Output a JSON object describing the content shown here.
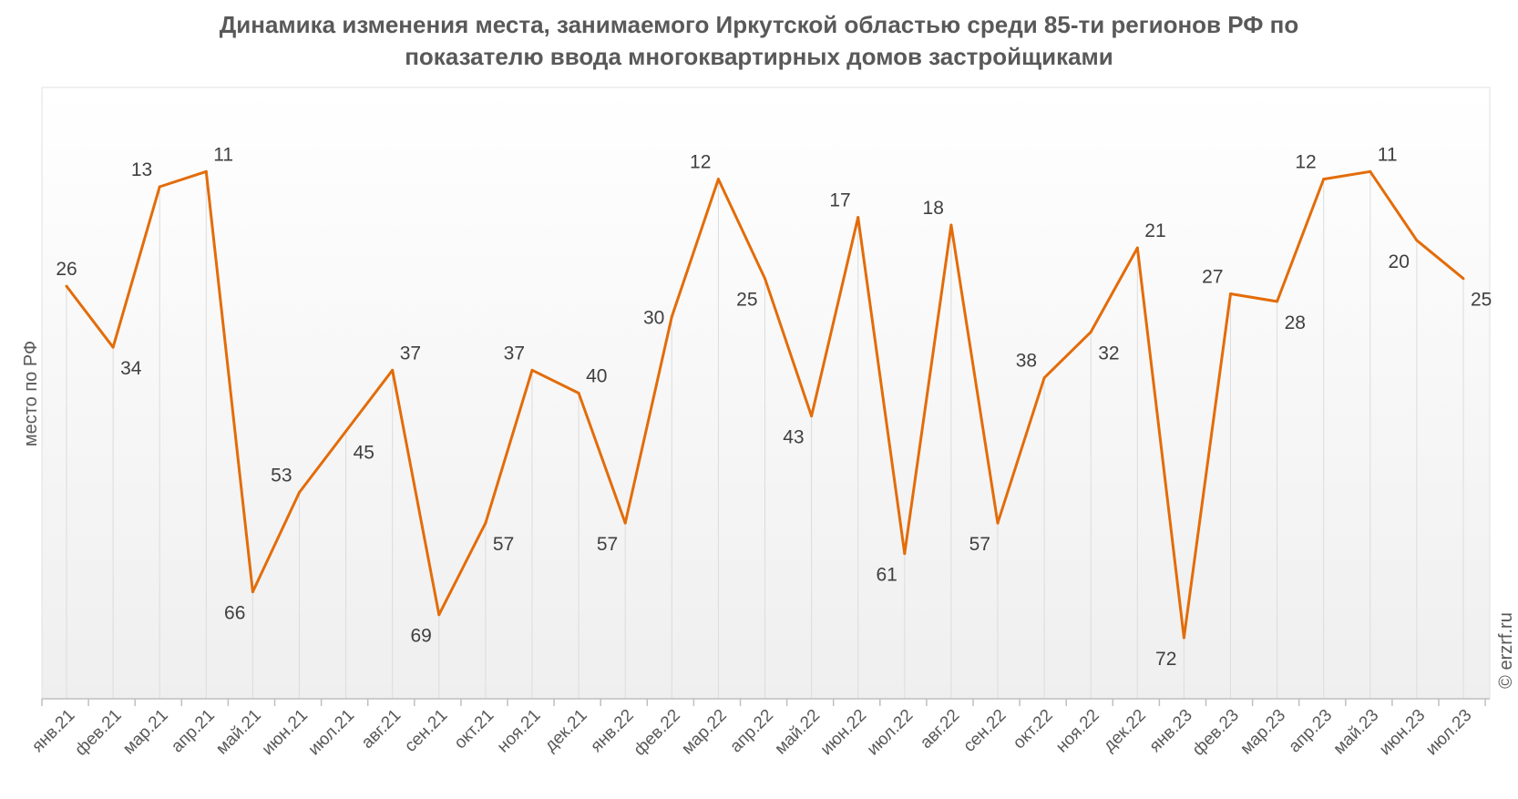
{
  "chart_data": {
    "type": "line",
    "title": [
      "Динамика изменения места, занимаемого Иркутской областью среди 85-ти регионов РФ по",
      "показателю ввода многоквартирных домов застройщиками"
    ],
    "xlabel": "",
    "ylabel": "место по РФ",
    "y_reversed": true,
    "ylim": [
      0,
      80
    ],
    "grid": "vertical",
    "categories": [
      "янв.21",
      "фев.21",
      "мар.21",
      "апр.21",
      "май.21",
      "июн.21",
      "июл.21",
      "авг.21",
      "сен.21",
      "окт.21",
      "ноя.21",
      "дек.21",
      "янв.22",
      "фев.22",
      "мар.22",
      "апр.22",
      "май.22",
      "июн.22",
      "июл.22",
      "авг.22",
      "сен.22",
      "окт.22",
      "ноя.22",
      "дек.22",
      "янв.23",
      "фев.23",
      "мар.23",
      "апр.23",
      "май.23",
      "июн.23",
      "июл.23"
    ],
    "series": [
      {
        "name": "место по РФ",
        "color": "#E36C09",
        "values": [
          26,
          34,
          13,
          11,
          66,
          53,
          45,
          37,
          69,
          57,
          37,
          40,
          57,
          30,
          12,
          25,
          43,
          17,
          61,
          18,
          57,
          38,
          32,
          21,
          72,
          27,
          28,
          12,
          11,
          20,
          25
        ]
      }
    ],
    "watermark": "© erzrf.ru"
  }
}
